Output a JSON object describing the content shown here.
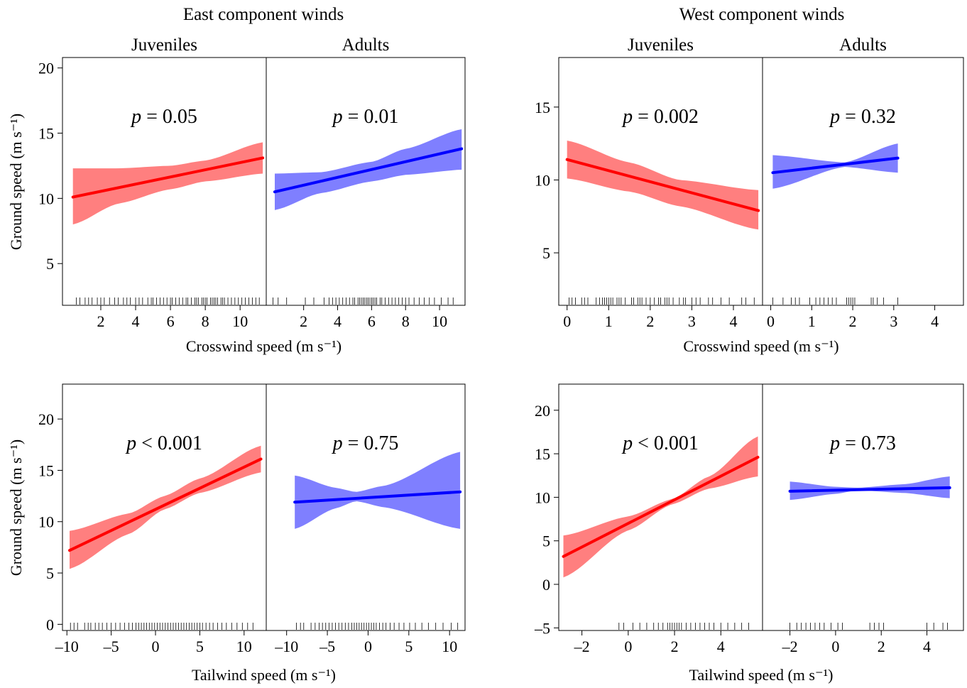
{
  "figure": {
    "colors": {
      "juvenile": "#ff0000",
      "juvenile_band": "#ff7f7f",
      "adult": "#0000ff",
      "adult_band": "#7f7fff"
    },
    "groups": {
      "east": {
        "title": "East component winds"
      },
      "west": {
        "title": "West component winds"
      }
    }
  },
  "chart_data": [
    {
      "id": "east-crosswind",
      "group": "east",
      "type": "line",
      "xlabel": "Crosswind speed (m s⁻¹)",
      "ylabel": "Ground speed (m s⁻¹)",
      "ylim": [
        1.8,
        20.8
      ],
      "yticks": [
        5,
        10,
        15,
        20
      ],
      "panels": [
        {
          "label": "Juveniles",
          "color": "juvenile",
          "p_label": "p = 0.05",
          "xlim": [
            -0.2,
            11.5
          ],
          "xticks": [
            2,
            4,
            6,
            8,
            10
          ],
          "line": {
            "x": [
              0.4,
              11.3
            ],
            "y": [
              10.1,
              13.1
            ]
          },
          "band": {
            "x": [
              0.4,
              3.0,
              6.0,
              8.0,
              11.3
            ],
            "upper": [
              12.3,
              12.3,
              12.5,
              12.9,
              14.3
            ],
            "lower": [
              8.0,
              9.6,
              10.7,
              11.3,
              11.9
            ]
          },
          "rug": [
            0.6,
            0.8,
            1.1,
            1.3,
            1.5,
            1.8,
            2.0,
            2.2,
            2.5,
            2.8,
            3.0,
            3.3,
            3.5,
            3.7,
            4.0,
            4.2,
            4.4,
            4.7,
            4.9,
            5.0,
            5.2,
            5.4,
            5.6,
            5.8,
            6.0,
            6.1,
            6.3,
            6.5,
            6.7,
            6.9,
            7.0,
            7.2,
            7.4,
            7.5,
            7.6,
            7.8,
            7.9,
            8.0,
            8.1,
            8.3,
            8.4,
            8.5,
            8.6,
            8.7,
            8.9,
            9.0,
            9.1,
            9.3,
            9.5,
            9.7,
            9.9,
            10.1,
            10.3,
            10.5,
            10.7,
            10.9,
            11.1
          ]
        },
        {
          "label": "Adults",
          "color": "adult",
          "p_label": "p = 0.01",
          "xlim": [
            -0.2,
            11.5
          ],
          "xticks": [
            2,
            4,
            6,
            8,
            10
          ],
          "line": {
            "x": [
              0.3,
              11.3
            ],
            "y": [
              10.5,
              13.8
            ]
          },
          "band": {
            "x": [
              0.3,
              3.0,
              6.0,
              8.0,
              11.3
            ],
            "upper": [
              11.9,
              12.0,
              12.8,
              13.8,
              15.3
            ],
            "lower": [
              9.1,
              10.4,
              11.3,
              11.8,
              12.2
            ]
          },
          "rug": [
            0.2,
            0.5,
            1.0,
            2.1,
            2.6,
            3.2,
            3.5,
            3.7,
            3.9,
            4.1,
            4.3,
            4.5,
            4.7,
            4.9,
            5.0,
            5.2,
            5.3,
            5.4,
            5.5,
            5.6,
            5.7,
            5.8,
            5.9,
            6.0,
            6.1,
            6.2,
            6.3,
            6.5,
            6.6,
            6.8,
            7.0,
            7.2,
            7.4,
            7.6,
            7.8,
            8.0,
            8.2,
            8.5,
            8.8,
            9.1,
            9.4,
            9.7,
            10.1,
            10.5,
            10.8
          ]
        }
      ]
    },
    {
      "id": "west-crosswind",
      "group": "west",
      "type": "line",
      "xlabel": "Crosswind speed (m s⁻¹)",
      "ylabel": "",
      "ylim": [
        1.4,
        18.4
      ],
      "yticks": [
        5,
        10,
        15
      ],
      "panels": [
        {
          "label": "Juveniles",
          "color": "juvenile",
          "p_label": "p = 0.002",
          "xlim": [
            -0.2,
            4.7
          ],
          "xticks": [
            0,
            1,
            2,
            3,
            4
          ],
          "line": {
            "x": [
              0.0,
              4.6
            ],
            "y": [
              11.4,
              7.9
            ]
          },
          "band": {
            "x": [
              0.0,
              1.5,
              2.7,
              4.6
            ],
            "upper": [
              12.7,
              11.2,
              10.0,
              9.3
            ],
            "lower": [
              10.1,
              9.2,
              8.2,
              6.6
            ]
          },
          "rug": [
            0.05,
            0.12,
            0.2,
            0.35,
            0.42,
            0.5,
            0.7,
            0.78,
            0.85,
            0.9,
            0.95,
            1.0,
            1.05,
            1.1,
            1.2,
            1.25,
            1.3,
            1.4,
            1.55,
            1.6,
            1.7,
            1.75,
            1.8,
            1.9,
            2.0,
            2.1,
            2.2,
            2.25,
            2.35,
            2.4,
            2.45,
            2.55,
            2.7,
            2.8,
            2.85,
            3.0,
            3.1,
            3.2,
            3.4,
            3.5,
            3.7,
            3.9,
            4.2,
            4.3,
            4.5
          ]
        },
        {
          "label": "Adults",
          "color": "adult",
          "p_label": "p = 0.32",
          "xlim": [
            -0.2,
            4.7
          ],
          "xticks": [
            0,
            1,
            2,
            3,
            4
          ],
          "line": {
            "x": [
              0.05,
              3.1
            ],
            "y": [
              10.5,
              11.5
            ]
          },
          "band": {
            "x": [
              0.05,
              1.8,
              3.1
            ],
            "upper": [
              11.7,
              11.2,
              12.5
            ],
            "lower": [
              9.4,
              10.9,
              10.5
            ]
          },
          "rug": [
            0.05,
            0.3,
            0.5,
            0.6,
            0.7,
            0.95,
            1.1,
            1.2,
            1.3,
            1.4,
            1.5,
            1.6,
            1.85,
            1.9,
            1.95,
            2.0,
            2.05,
            2.45,
            2.5,
            2.6,
            2.75,
            3.1
          ]
        }
      ]
    },
    {
      "id": "east-tailwind",
      "group": "east",
      "type": "line",
      "xlabel": "Tailwind speed (m s⁻¹)",
      "ylabel": "Ground speed (m s⁻¹)",
      "ylim": [
        -0.6,
        23.4
      ],
      "yticks": [
        0,
        5,
        10,
        15,
        20
      ],
      "panels": [
        {
          "label": "Juveniles",
          "color": "juvenile",
          "p_label": "p < 0.001",
          "xlim": [
            -10.5,
            12.5
          ],
          "xticks": [
            -10,
            -5,
            0,
            5,
            10
          ],
          "line": {
            "x": [
              -9.7,
              11.9
            ],
            "y": [
              7.2,
              16.1
            ]
          },
          "band": {
            "x": [
              -9.7,
              -3.0,
              1.0,
              5.0,
              11.9
            ],
            "upper": [
              9.1,
              10.8,
              12.5,
              14.2,
              17.4
            ],
            "lower": [
              5.4,
              8.8,
              11.2,
              12.8,
              14.8
            ]
          },
          "rug": [
            -9.6,
            -9.2,
            -8.8,
            -8.0,
            -7.6,
            -7.3,
            -6.8,
            -6.4,
            -6.0,
            -5.5,
            -5.0,
            -4.5,
            -4.0,
            -3.5,
            -3.0,
            -2.6,
            -2.2,
            -1.9,
            -1.6,
            -1.3,
            -1.0,
            -0.7,
            -0.4,
            -0.1,
            0.2,
            0.5,
            0.8,
            1.1,
            1.4,
            1.7,
            2.0,
            2.3,
            2.6,
            2.9,
            3.2,
            3.5,
            3.8,
            4.1,
            4.4,
            4.7,
            5.0,
            5.3,
            5.7,
            6.1,
            6.5,
            7.0,
            7.5,
            8.0,
            8.6,
            9.2,
            9.8,
            10.4,
            11.0
          ]
        },
        {
          "label": "Adults",
          "color": "adult",
          "p_label": "p = 0.75",
          "xlim": [
            -12.5,
            11.9
          ],
          "xticks": [
            -10,
            -5,
            0,
            5,
            10
          ],
          "line": {
            "x": [
              -9.0,
              11.3
            ],
            "y": [
              11.9,
              12.9
            ]
          },
          "band": {
            "x": [
              -9.0,
              -4.0,
              -1.5,
              2.0,
              11.3
            ],
            "upper": [
              14.5,
              13.3,
              12.9,
              13.5,
              16.8
            ],
            "lower": [
              9.3,
              11.3,
              12.0,
              11.4,
              9.3
            ]
          },
          "rug": [
            -8.8,
            -8.3,
            -7.9,
            -7.0,
            -6.5,
            -6.0,
            -5.6,
            -5.2,
            -4.8,
            -4.4,
            -4.0,
            -3.6,
            -3.2,
            -2.8,
            -2.4,
            -2.0,
            -1.7,
            -1.4,
            -1.1,
            -0.8,
            -0.5,
            -0.2,
            0.1,
            0.4,
            0.7,
            1.0,
            1.4,
            1.8,
            2.2,
            2.7,
            3.2,
            3.8,
            4.4,
            5.1,
            5.8,
            6.6,
            7.4,
            8.3,
            9.2,
            10.2,
            11.0
          ]
        }
      ]
    },
    {
      "id": "west-tailwind",
      "group": "west",
      "type": "line",
      "xlabel": "Tailwind speed (m s⁻¹)",
      "ylabel": "",
      "ylim": [
        -5.3,
        23.0
      ],
      "yticks": [
        -5,
        0,
        5,
        10,
        15,
        20
      ],
      "panels": [
        {
          "label": "Juveniles",
          "color": "juvenile",
          "p_label": "p < 0.001",
          "xlim": [
            -3.0,
            5.8
          ],
          "xticks": [
            -2,
            0,
            2,
            4
          ],
          "line": {
            "x": [
              -2.8,
              5.6
            ],
            "y": [
              3.2,
              14.6
            ]
          },
          "band": {
            "x": [
              -2.8,
              0.0,
              1.9,
              3.5,
              5.6
            ],
            "upper": [
              5.6,
              7.8,
              9.8,
              12.4,
              17.0
            ],
            "lower": [
              0.8,
              6.2,
              9.2,
              11.0,
              12.4
            ]
          },
          "rug": [
            -0.4,
            -0.2,
            0.2,
            0.5,
            0.8,
            1.1,
            1.3,
            1.5,
            1.7,
            1.8,
            1.9,
            2.0,
            2.1,
            2.2,
            2.3,
            2.5,
            2.7,
            2.9,
            3.1,
            3.3,
            3.5,
            3.7,
            4.0,
            4.3,
            4.6,
            4.9,
            5.2
          ]
        },
        {
          "label": "Adults",
          "color": "adult",
          "p_label": "p = 0.73",
          "xlim": [
            -3.2,
            5.6
          ],
          "xticks": [
            -2,
            0,
            2,
            4
          ],
          "line": {
            "x": [
              -2.0,
              5.0
            ],
            "y": [
              10.7,
              11.1
            ]
          },
          "band": {
            "x": [
              -2.0,
              0.0,
              1.0,
              3.0,
              5.0
            ],
            "upper": [
              11.8,
              11.2,
              11.1,
              11.5,
              12.4
            ],
            "lower": [
              9.7,
              10.4,
              10.8,
              10.5,
              9.9
            ]
          },
          "rug": [
            -2.0,
            -1.7,
            -1.5,
            -1.3,
            -1.1,
            -0.9,
            -0.7,
            -0.5,
            -0.2,
            0.1,
            0.3,
            1.5,
            1.7,
            1.9,
            2.1,
            4.0,
            4.3,
            4.7,
            4.9
          ]
        }
      ]
    }
  ]
}
